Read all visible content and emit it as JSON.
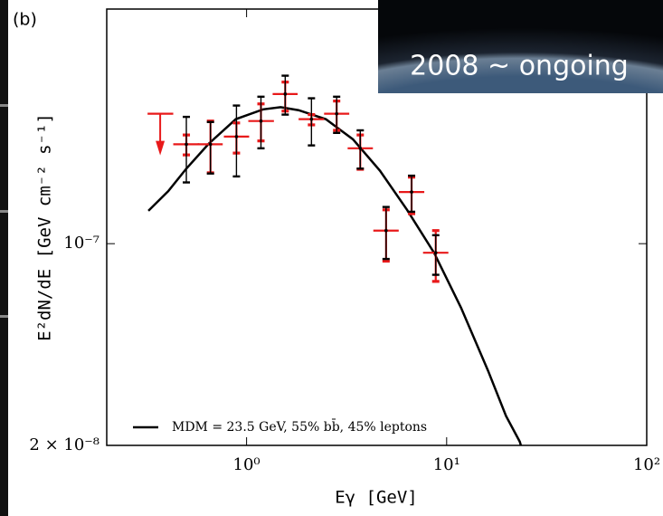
{
  "panel_label": "(b)",
  "inset_text": "2008 ~ ongoing",
  "chart_data": {
    "type": "scatter",
    "xlog": true,
    "ylog": true,
    "xlabel": "Eγ  [GeV]",
    "ylabel": "E²dN/dE  [GeV cm⁻² s⁻¹]",
    "xlim": [
      0.2,
      100
    ],
    "ylim": [
      2e-08,
      6.5e-07
    ],
    "xticks": [
      {
        "value": 1,
        "label": "10⁰"
      },
      {
        "value": 10,
        "label": "10¹"
      },
      {
        "value": 100,
        "label": "10²"
      }
    ],
    "yticks": [
      {
        "value": 2e-08,
        "label": "2 × 10⁻⁸"
      },
      {
        "value": 1e-07,
        "label": "10⁻⁷"
      }
    ],
    "legend": "lower left",
    "points": [
      {
        "color": "#e8191a",
        "x": [
          0.37,
          0.5,
          0.66,
          0.89,
          1.18,
          1.56,
          2.11,
          2.82,
          3.7,
          4.98,
          6.68,
          8.82
        ],
        "xlow": [
          0.32,
          0.43,
          0.57,
          0.77,
          1.02,
          1.35,
          1.82,
          2.44,
          3.2,
          4.3,
          5.77,
          7.62
        ],
        "xhigh": [
          0.43,
          0.58,
          0.76,
          1.03,
          1.37,
          1.8,
          2.44,
          3.26,
          4.28,
          5.76,
          7.73,
          10.2
        ],
        "values": [
          2.82e-07,
          2.21e-07,
          2.21e-07,
          2.35e-07,
          2.66e-07,
          3.3e-07,
          2.7e-07,
          2.82e-07,
          2.14e-07,
          1.11e-07,
          1.51e-07,
          9.3e-08
        ],
        "ylow": [
          null,
          2.03e-07,
          1.76e-07,
          2.06e-07,
          2.27e-07,
          2.88e-07,
          2.58e-07,
          2.47e-07,
          1.81e-07,
          8.7e-08,
          1.27e-07,
          7.4e-08
        ],
        "yhigh": [
          null,
          2.38e-07,
          2.66e-07,
          2.62e-07,
          3.05e-07,
          3.63e-07,
          2.8e-07,
          3.12e-07,
          2.38e-07,
          1.31e-07,
          1.7e-07,
          1.11e-07
        ],
        "upper_limit": [
          true,
          false,
          false,
          false,
          false,
          false,
          false,
          false,
          false,
          false,
          false,
          false
        ]
      },
      {
        "color": "#000000",
        "x": [
          0.5,
          0.66,
          0.89,
          1.18,
          1.56,
          2.11,
          2.82,
          3.7,
          4.98,
          6.68,
          8.82
        ],
        "values": [
          2.21e-07,
          2.21e-07,
          2.35e-07,
          2.66e-07,
          3.3e-07,
          2.7e-07,
          2.82e-07,
          2.14e-07,
          1.11e-07,
          1.51e-07,
          9.3e-08
        ],
        "ylow": [
          1.63e-07,
          1.75e-07,
          1.71e-07,
          2.14e-07,
          2.8e-07,
          2.19e-07,
          2.42e-07,
          1.82e-07,
          8.85e-08,
          1.29e-07,
          7.8e-08
        ],
        "yhigh": [
          2.75e-07,
          2.64e-07,
          3.01e-07,
          3.23e-07,
          3.82e-07,
          3.19e-07,
          3.23e-07,
          2.47e-07,
          1.34e-07,
          1.72e-07,
          1.07e-07
        ]
      }
    ],
    "series": [
      {
        "name": "MDM = 23.5 GeV, 55% bb̄, 45% leptons",
        "color": "#000000",
        "x": [
          0.323,
          0.406,
          0.5,
          0.647,
          0.883,
          1.21,
          1.48,
          1.82,
          2.49,
          3.4,
          4.64,
          6.34,
          8.65,
          11.8,
          16.1,
          19.8,
          23.2,
          23.5
        ],
        "values": [
          1.3e-07,
          1.52e-07,
          1.82e-07,
          2.22e-07,
          2.7e-07,
          2.92e-07,
          2.97e-07,
          2.9e-07,
          2.7e-07,
          2.3e-07,
          1.79e-07,
          1.31e-07,
          9.3e-08,
          6e-08,
          3.63e-08,
          2.53e-08,
          2.06e-08,
          2e-08
        ]
      }
    ]
  }
}
